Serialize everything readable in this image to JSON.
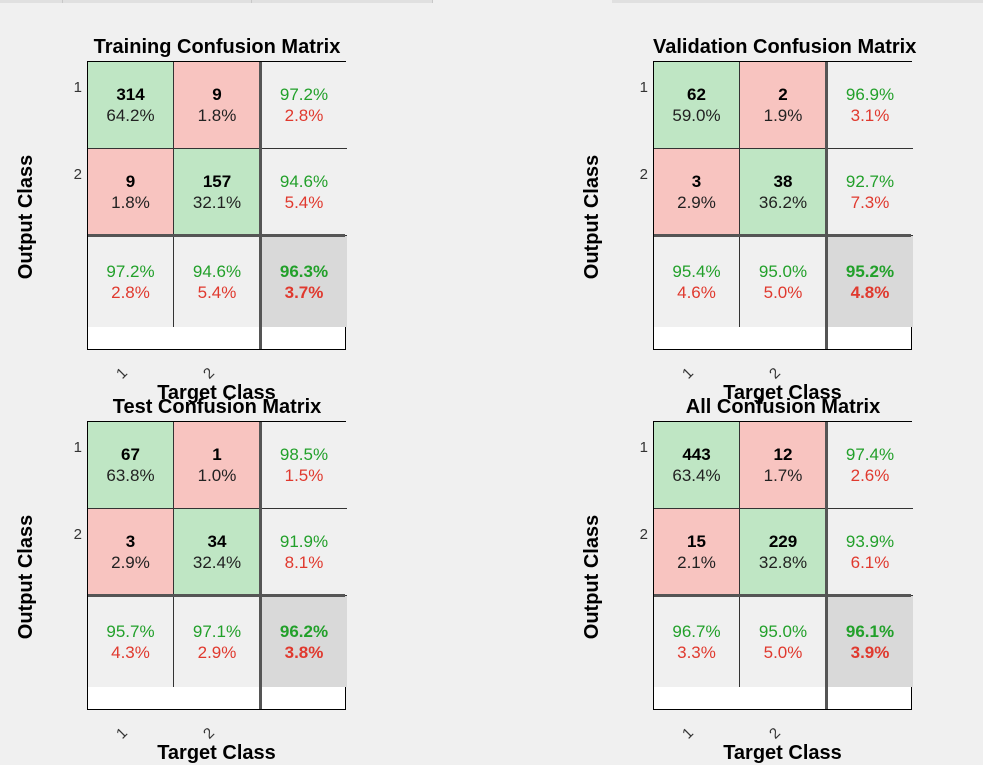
{
  "colors": {
    "correct_bg": "#bfe6c4",
    "wrong_bg": "#f8c4c0",
    "summary_bg": "#f0f0f0",
    "total_bg": "#d9d9d9",
    "good_text": "#22a02a",
    "bad_text": "#e0392e"
  },
  "chart_data": [
    {
      "type": "heatmap",
      "title": "Training Confusion Matrix",
      "xlabel": "Target Class",
      "ylabel": "Output Class",
      "x_ticks": [
        "1",
        "2"
      ],
      "y_ticks": [
        "1",
        "2"
      ],
      "cells": [
        [
          {
            "count": "314",
            "pct": "64.2%"
          },
          {
            "count": "9",
            "pct": "1.8%"
          }
        ],
        [
          {
            "count": "9",
            "pct": "1.8%"
          },
          {
            "count": "157",
            "pct": "32.1%"
          }
        ]
      ],
      "row_summary": [
        {
          "good": "97.2%",
          "bad": "2.8%"
        },
        {
          "good": "94.6%",
          "bad": "5.4%"
        }
      ],
      "col_summary": [
        {
          "good": "97.2%",
          "bad": "2.8%"
        },
        {
          "good": "94.6%",
          "bad": "5.4%"
        }
      ],
      "overall": {
        "good": "96.3%",
        "bad": "3.7%"
      }
    },
    {
      "type": "heatmap",
      "title": "Validation Confusion Matrix",
      "xlabel": "Target Class",
      "ylabel": "Output Class",
      "x_ticks": [
        "1",
        "2"
      ],
      "y_ticks": [
        "1",
        "2"
      ],
      "cells": [
        [
          {
            "count": "62",
            "pct": "59.0%"
          },
          {
            "count": "2",
            "pct": "1.9%"
          }
        ],
        [
          {
            "count": "3",
            "pct": "2.9%"
          },
          {
            "count": "38",
            "pct": "36.2%"
          }
        ]
      ],
      "row_summary": [
        {
          "good": "96.9%",
          "bad": "3.1%"
        },
        {
          "good": "92.7%",
          "bad": "7.3%"
        }
      ],
      "col_summary": [
        {
          "good": "95.4%",
          "bad": "4.6%"
        },
        {
          "good": "95.0%",
          "bad": "5.0%"
        }
      ],
      "overall": {
        "good": "95.2%",
        "bad": "4.8%"
      }
    },
    {
      "type": "heatmap",
      "title": "Test Confusion Matrix",
      "xlabel": "Target Class",
      "ylabel": "Output Class",
      "x_ticks": [
        "1",
        "2"
      ],
      "y_ticks": [
        "1",
        "2"
      ],
      "cells": [
        [
          {
            "count": "67",
            "pct": "63.8%"
          },
          {
            "count": "1",
            "pct": "1.0%"
          }
        ],
        [
          {
            "count": "3",
            "pct": "2.9%"
          },
          {
            "count": "34",
            "pct": "32.4%"
          }
        ]
      ],
      "row_summary": [
        {
          "good": "98.5%",
          "bad": "1.5%"
        },
        {
          "good": "91.9%",
          "bad": "8.1%"
        }
      ],
      "col_summary": [
        {
          "good": "95.7%",
          "bad": "4.3%"
        },
        {
          "good": "97.1%",
          "bad": "2.9%"
        }
      ],
      "overall": {
        "good": "96.2%",
        "bad": "3.8%"
      }
    },
    {
      "type": "heatmap",
      "title": "All Confusion Matrix",
      "xlabel": "Target Class",
      "ylabel": "Output Class",
      "x_ticks": [
        "1",
        "2"
      ],
      "y_ticks": [
        "1",
        "2"
      ],
      "cells": [
        [
          {
            "count": "443",
            "pct": "63.4%"
          },
          {
            "count": "12",
            "pct": "1.7%"
          }
        ],
        [
          {
            "count": "15",
            "pct": "2.1%"
          },
          {
            "count": "229",
            "pct": "32.8%"
          }
        ]
      ],
      "row_summary": [
        {
          "good": "97.4%",
          "bad": "2.6%"
        },
        {
          "good": "93.9%",
          "bad": "6.1%"
        }
      ],
      "col_summary": [
        {
          "good": "96.7%",
          "bad": "3.3%"
        },
        {
          "good": "95.0%",
          "bad": "5.0%"
        }
      ],
      "overall": {
        "good": "96.1%",
        "bad": "3.9%"
      }
    }
  ]
}
